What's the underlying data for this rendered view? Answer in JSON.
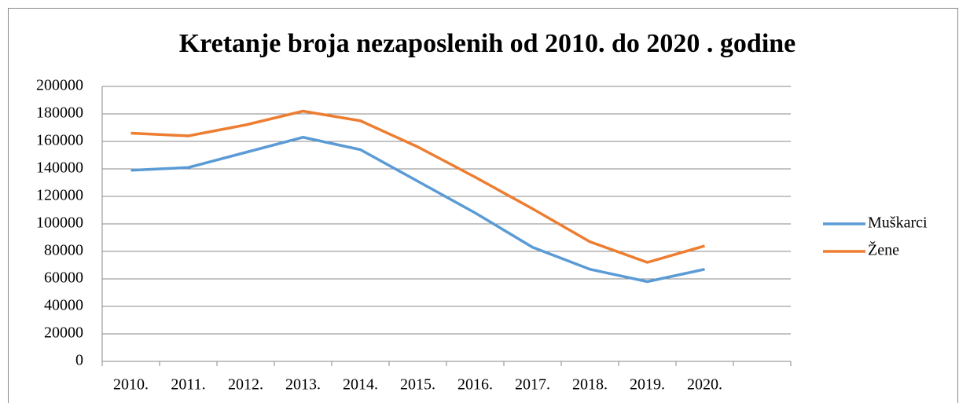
{
  "chart_data": {
    "type": "line",
    "title": "Kretanje broja nezaposlenih od 2010. do 2020 . godine",
    "categories": [
      "2010.",
      "2011.",
      "2012.",
      "2013.",
      "2014.",
      "2015.",
      "2016.",
      "2017.",
      "2018.",
      "2019.",
      "2020.",
      null
    ],
    "series": [
      {
        "name": "Muškarci",
        "color": "#5b9bd5",
        "values": [
          139000,
          141000,
          152000,
          163000,
          154000,
          131000,
          108000,
          83000,
          67000,
          58000,
          67000,
          null
        ]
      },
      {
        "name": "Žene",
        "color": "#ed7d31",
        "values": [
          166000,
          164000,
          172000,
          182000,
          175000,
          156000,
          134000,
          111000,
          87000,
          72000,
          84000,
          null
        ]
      }
    ],
    "ylim": [
      0,
      200000
    ],
    "yticks": [
      0,
      20000,
      40000,
      60000,
      80000,
      100000,
      120000,
      140000,
      160000,
      180000,
      200000
    ],
    "grid": true,
    "legend": "right"
  }
}
